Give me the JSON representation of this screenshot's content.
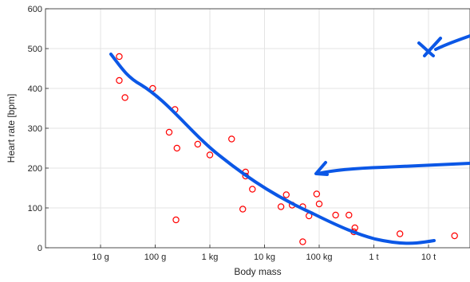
{
  "chart_data": {
    "type": "scatter",
    "title": "",
    "xlabel": "Body mass",
    "ylabel": "Heart rate [bpm]",
    "xscale": "log",
    "xlim_kg": [
      0.001,
      100000
    ],
    "ylim": [
      0,
      600
    ],
    "grid": true,
    "legend": "none",
    "x_ticks": [
      {
        "value_kg": 0.01,
        "label": "10 g"
      },
      {
        "value_kg": 0.1,
        "label": "100 g"
      },
      {
        "value_kg": 1,
        "label": "1 kg"
      },
      {
        "value_kg": 10,
        "label": "10 kg"
      },
      {
        "value_kg": 100,
        "label": "100 kg"
      },
      {
        "value_kg": 1000,
        "label": "1 t"
      },
      {
        "value_kg": 10000,
        "label": "10 t"
      }
    ],
    "y_ticks": [
      0,
      100,
      200,
      300,
      400,
      500,
      600
    ],
    "series": [
      {
        "marker": "open-circle",
        "color": "#ff0000",
        "points": [
          {
            "x_kg": 0.022,
            "y": 480
          },
          {
            "x_kg": 0.022,
            "y": 420
          },
          {
            "x_kg": 0.028,
            "y": 377
          },
          {
            "x_kg": 0.09,
            "y": 400
          },
          {
            "x_kg": 0.23,
            "y": 347
          },
          {
            "x_kg": 0.18,
            "y": 290
          },
          {
            "x_kg": 0.25,
            "y": 250
          },
          {
            "x_kg": 0.24,
            "y": 70
          },
          {
            "x_kg": 0.6,
            "y": 260
          },
          {
            "x_kg": 1.0,
            "y": 233
          },
          {
            "x_kg": 2.5,
            "y": 273
          },
          {
            "x_kg": 4.5,
            "y": 190
          },
          {
            "x_kg": 4.5,
            "y": 180
          },
          {
            "x_kg": 6.0,
            "y": 147
          },
          {
            "x_kg": 4.0,
            "y": 97
          },
          {
            "x_kg": 25,
            "y": 133
          },
          {
            "x_kg": 20,
            "y": 103
          },
          {
            "x_kg": 32,
            "y": 107
          },
          {
            "x_kg": 50,
            "y": 103
          },
          {
            "x_kg": 65,
            "y": 80
          },
          {
            "x_kg": 90,
            "y": 135
          },
          {
            "x_kg": 100,
            "y": 110
          },
          {
            "x_kg": 50,
            "y": 15
          },
          {
            "x_kg": 200,
            "y": 82
          },
          {
            "x_kg": 350,
            "y": 82
          },
          {
            "x_kg": 450,
            "y": 50
          },
          {
            "x_kg": 430,
            "y": 40
          },
          {
            "x_kg": 3000,
            "y": 35
          },
          {
            "x_kg": 30000,
            "y": 30
          }
        ]
      }
    ]
  },
  "annotations": {
    "ink_color": "#0b57e6"
  }
}
